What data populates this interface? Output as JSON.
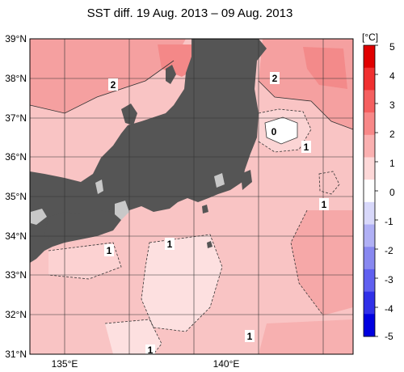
{
  "title": "SST diff. 19 Aug. 2013 – 09 Aug. 2013",
  "lat_labels": [
    "39°N",
    "38°N",
    "37°N",
    "36°N",
    "35°N",
    "34°N",
    "33°N",
    "32°N",
    "31°N"
  ],
  "lon_labels": [
    "135°E",
    "140°E"
  ],
  "contour_labels": [
    "2",
    "2",
    "0",
    "1",
    "1",
    "1",
    "1",
    "1",
    "1"
  ],
  "colorbar": {
    "unit": "[°C]",
    "ticks": [
      "5",
      "4",
      "3",
      "2",
      "1",
      "0",
      "-1",
      "-2",
      "-3",
      "-4",
      "-5"
    ],
    "colors": [
      "#e00000",
      "#f03030",
      "#f56060",
      "#f88888",
      "#fab0b0",
      "#fdd8d8",
      "#ffffff",
      "#d8d8fa",
      "#b0b0f5",
      "#8888f0",
      "#6060f0",
      "#3030e8",
      "#0000e0"
    ]
  },
  "colors": {
    "land": "#555555",
    "lake": "#c8c8c8",
    "sea_base": "#f9c4c4"
  }
}
